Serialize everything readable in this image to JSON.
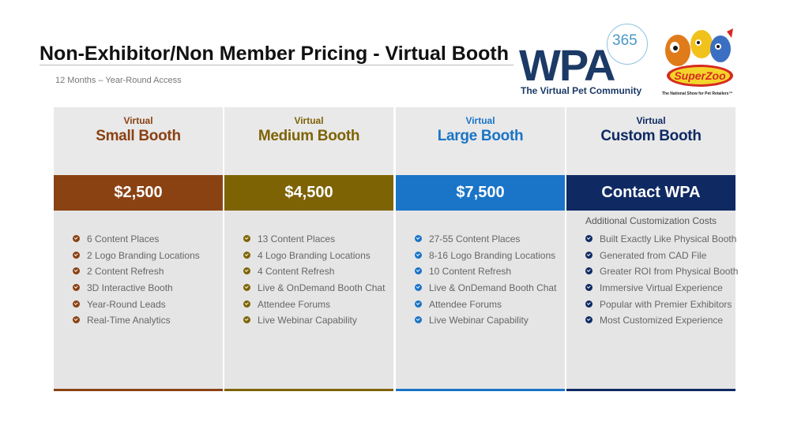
{
  "title": "Non-Exhibitor/Non Member Pricing - Virtual Booth",
  "subtitle": "12 Months – Year-Round Access",
  "logos": {
    "wpa": {
      "letters": "WPA",
      "number": "365",
      "tagline": "The Virtual Pet Community"
    },
    "superzoo": {
      "name": "SuperZoo",
      "tagline": "The National Show for Pet Retailers™"
    }
  },
  "colors": {
    "small": "#8a4213",
    "medium": "#7e6305",
    "large": "#1a74c7",
    "custom": "#0f2a63"
  },
  "plans": [
    {
      "virtual_label": "Virtual",
      "name": "Small Booth",
      "price": "$2,500",
      "note": "",
      "features": [
        "6 Content Places",
        "2 Logo Branding Locations",
        "2 Content Refresh",
        "3D Interactive Booth",
        "Year-Round Leads",
        "Real-Time Analytics"
      ]
    },
    {
      "virtual_label": "Virtual",
      "name": "Medium Booth",
      "price": "$4,500",
      "note": "",
      "features": [
        "13 Content Places",
        "4 Logo Branding Locations",
        "4 Content Refresh",
        "Live & OnDemand Booth Chat",
        "Attendee Forums",
        "Live Webinar Capability"
      ]
    },
    {
      "virtual_label": "Virtual",
      "name": "Large Booth",
      "price": "$7,500",
      "note": "",
      "features": [
        "27-55 Content Places",
        "8-16 Logo Branding Locations",
        "10 Content Refresh",
        "Live & OnDemand Booth Chat",
        "Attendee Forums",
        "Live Webinar Capability"
      ]
    },
    {
      "virtual_label": "Virtual",
      "name": "Custom Booth",
      "price": "Contact WPA",
      "note": "Additional  Customization Costs",
      "features": [
        "Built Exactly Like Physical Booth",
        "Generated from CAD File",
        "Greater ROI from Physical Booth",
        "Immersive Virtual Experience",
        "Popular with Premier Exhibitors",
        "Most Customized Experience"
      ]
    }
  ]
}
